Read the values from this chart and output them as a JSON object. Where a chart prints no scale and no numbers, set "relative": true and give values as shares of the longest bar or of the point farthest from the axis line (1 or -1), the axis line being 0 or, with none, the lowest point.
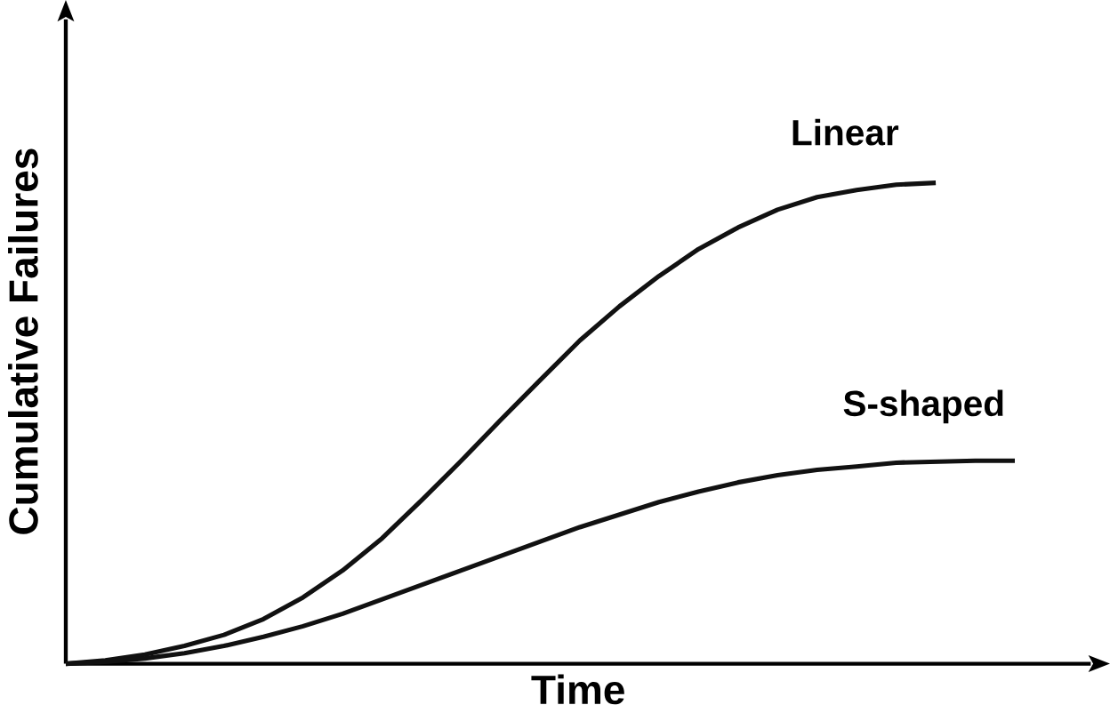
{
  "chart_data": {
    "type": "line",
    "relative": true,
    "xlabel": "Time",
    "ylabel": "Cumulative Failures",
    "categories": [
      null,
      null,
      null,
      null,
      null,
      null,
      null,
      null,
      null,
      null,
      null,
      null,
      null,
      null,
      null,
      null,
      null,
      null,
      null,
      null,
      null,
      null,
      null,
      null,
      null
    ],
    "series": [
      {
        "name": "Linear",
        "color": "#111111",
        "values": [
          0,
          0.007,
          0.019,
          0.037,
          0.06,
          0.093,
          0.138,
          0.194,
          0.261,
          0.34,
          0.422,
          0.507,
          0.59,
          0.672,
          0.743,
          0.806,
          0.862,
          0.907,
          0.944,
          0.97,
          0.985,
          0.996,
          1.0,
          null,
          null
        ]
      },
      {
        "name": "S-shaped",
        "color": "#111111",
        "values": [
          0,
          0.004,
          0.011,
          0.022,
          0.037,
          0.056,
          0.078,
          0.104,
          0.134,
          0.164,
          0.194,
          0.224,
          0.254,
          0.284,
          0.31,
          0.336,
          0.358,
          0.377,
          0.392,
          0.403,
          0.41,
          0.418,
          0.42,
          0.422,
          0.422
        ]
      }
    ],
    "legend": false,
    "grid": false,
    "marker": "none",
    "line_style": "solid"
  }
}
